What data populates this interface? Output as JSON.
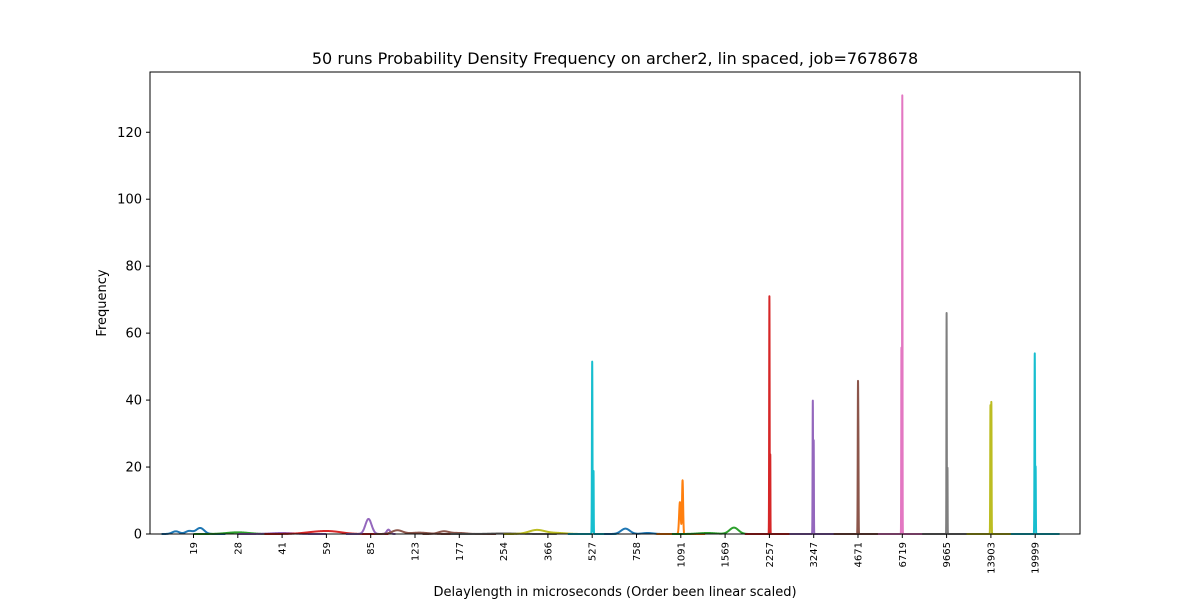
{
  "chart_data": {
    "type": "line",
    "title": "50 runs Probability Density Frequency on archer2, lin spaced, job=7678678",
    "xlabel": "Delaylength in microseconds (Order been linear scaled)",
    "ylabel": "Frequency",
    "x_scale": "categorical-linear-order",
    "x_categories": [
      "19",
      "28",
      "41",
      "59",
      "85",
      "123",
      "177",
      "254",
      "366",
      "527",
      "758",
      "1091",
      "1569",
      "2257",
      "3247",
      "4671",
      "6719",
      "9665",
      "13903",
      "19999"
    ],
    "ylim": [
      0,
      138
    ],
    "yticks": [
      0,
      20,
      40,
      60,
      80,
      100,
      120
    ],
    "grid": false,
    "legend": "none",
    "series": [
      {
        "category": "19",
        "color": "#1f77b4",
        "peaks": [
          {
            "offset": -0.4,
            "height": 0.8,
            "width": 0.08
          },
          {
            "offset": -0.1,
            "height": 0.9,
            "width": 0.08
          },
          {
            "offset": 0.15,
            "height": 1.8,
            "width": 0.09
          }
        ]
      },
      {
        "category": "28",
        "color": "#2ca02c",
        "peaks": [
          {
            "offset": 0,
            "height": 0.5,
            "width": 0.25
          }
        ]
      },
      {
        "category": "41",
        "color": "#9467bd",
        "peaks": [
          {
            "offset": 0,
            "height": 0.3,
            "width": 0.25
          }
        ]
      },
      {
        "category": "59",
        "color": "#d62728",
        "peaks": [
          {
            "offset": -0.2,
            "height": 0.6,
            "width": 0.3
          },
          {
            "offset": 0.15,
            "height": 0.5,
            "width": 0.25
          }
        ]
      },
      {
        "category": "85",
        "color": "#9467bd",
        "peaks": [
          {
            "offset": -0.05,
            "height": 4.5,
            "width": 0.07
          },
          {
            "offset": 0.4,
            "height": 1.3,
            "width": 0.04
          }
        ]
      },
      {
        "category": "123",
        "color": "#8c564b",
        "peaks": [
          {
            "offset": -0.4,
            "height": 1.1,
            "width": 0.12
          },
          {
            "offset": 0.1,
            "height": 0.4,
            "width": 0.2
          }
        ]
      },
      {
        "category": "177",
        "color": "#8c564b",
        "peaks": [
          {
            "offset": -0.35,
            "height": 0.8,
            "width": 0.12
          },
          {
            "offset": 0.0,
            "height": 0.3,
            "width": 0.15
          }
        ]
      },
      {
        "category": "254",
        "color": "#7f7f7f",
        "peaks": [
          {
            "offset": 0,
            "height": 0.2,
            "width": 0.3
          }
        ]
      },
      {
        "category": "366",
        "color": "#bcbd22",
        "peaks": [
          {
            "offset": -0.25,
            "height": 1.2,
            "width": 0.18
          },
          {
            "offset": 0.2,
            "height": 0.3,
            "width": 0.2
          }
        ]
      },
      {
        "category": "527",
        "color": "#17becf",
        "peaks": [
          {
            "offset": 0.0,
            "height": 51.5,
            "width": 0.006
          },
          {
            "offset": 0.03,
            "height": 19.0,
            "width": 0.004
          }
        ]
      },
      {
        "category": "758",
        "color": "#1f77b4",
        "peaks": [
          {
            "offset": -0.25,
            "height": 1.6,
            "width": 0.1
          },
          {
            "offset": 0.25,
            "height": 0.3,
            "width": 0.12
          }
        ]
      },
      {
        "category": "1091",
        "color": "#ff7f0e",
        "peaks": [
          {
            "offset": -0.02,
            "height": 9.5,
            "width": 0.018
          },
          {
            "offset": 0.04,
            "height": 16.0,
            "width": 0.012
          }
        ]
      },
      {
        "category": "1569",
        "color": "#2ca02c",
        "peaks": [
          {
            "offset": -0.4,
            "height": 0.3,
            "width": 0.2
          },
          {
            "offset": 0.2,
            "height": 1.9,
            "width": 0.1
          }
        ]
      },
      {
        "category": "2257",
        "color": "#d62728",
        "peaks": [
          {
            "offset": 0.0,
            "height": 71.0,
            "width": 0.005
          },
          {
            "offset": 0.02,
            "height": 24.0,
            "width": 0.003
          }
        ]
      },
      {
        "category": "3247",
        "color": "#9467bd",
        "peaks": [
          {
            "offset": -0.02,
            "height": 40.0,
            "width": 0.005
          },
          {
            "offset": 0.0,
            "height": 28.0,
            "width": 0.004
          }
        ]
      },
      {
        "category": "4671",
        "color": "#8c564b",
        "peaks": [
          {
            "offset": 0.0,
            "height": 45.0,
            "width": 0.006
          },
          {
            "offset": 0.01,
            "height": 17.0,
            "width": 0.004
          }
        ]
      },
      {
        "category": "6719",
        "color": "#e377c2",
        "peaks": [
          {
            "offset": -0.02,
            "height": 56.0,
            "width": 0.004
          },
          {
            "offset": 0.0,
            "height": 131.0,
            "width": 0.004
          }
        ]
      },
      {
        "category": "9665",
        "color": "#7f7f7f",
        "peaks": [
          {
            "offset": 0.0,
            "height": 66.0,
            "width": 0.004
          },
          {
            "offset": 0.02,
            "height": 20.0,
            "width": 0.003
          }
        ]
      },
      {
        "category": "13903",
        "color": "#bcbd22",
        "peaks": [
          {
            "offset": -0.01,
            "height": 38.5,
            "width": 0.005
          },
          {
            "offset": 0.01,
            "height": 39.5,
            "width": 0.005
          }
        ]
      },
      {
        "category": "19999",
        "color": "#17becf",
        "peaks": [
          {
            "offset": -0.01,
            "height": 54.0,
            "width": 0.006
          },
          {
            "offset": 0.01,
            "height": 20.0,
            "width": 0.004
          }
        ]
      }
    ]
  }
}
